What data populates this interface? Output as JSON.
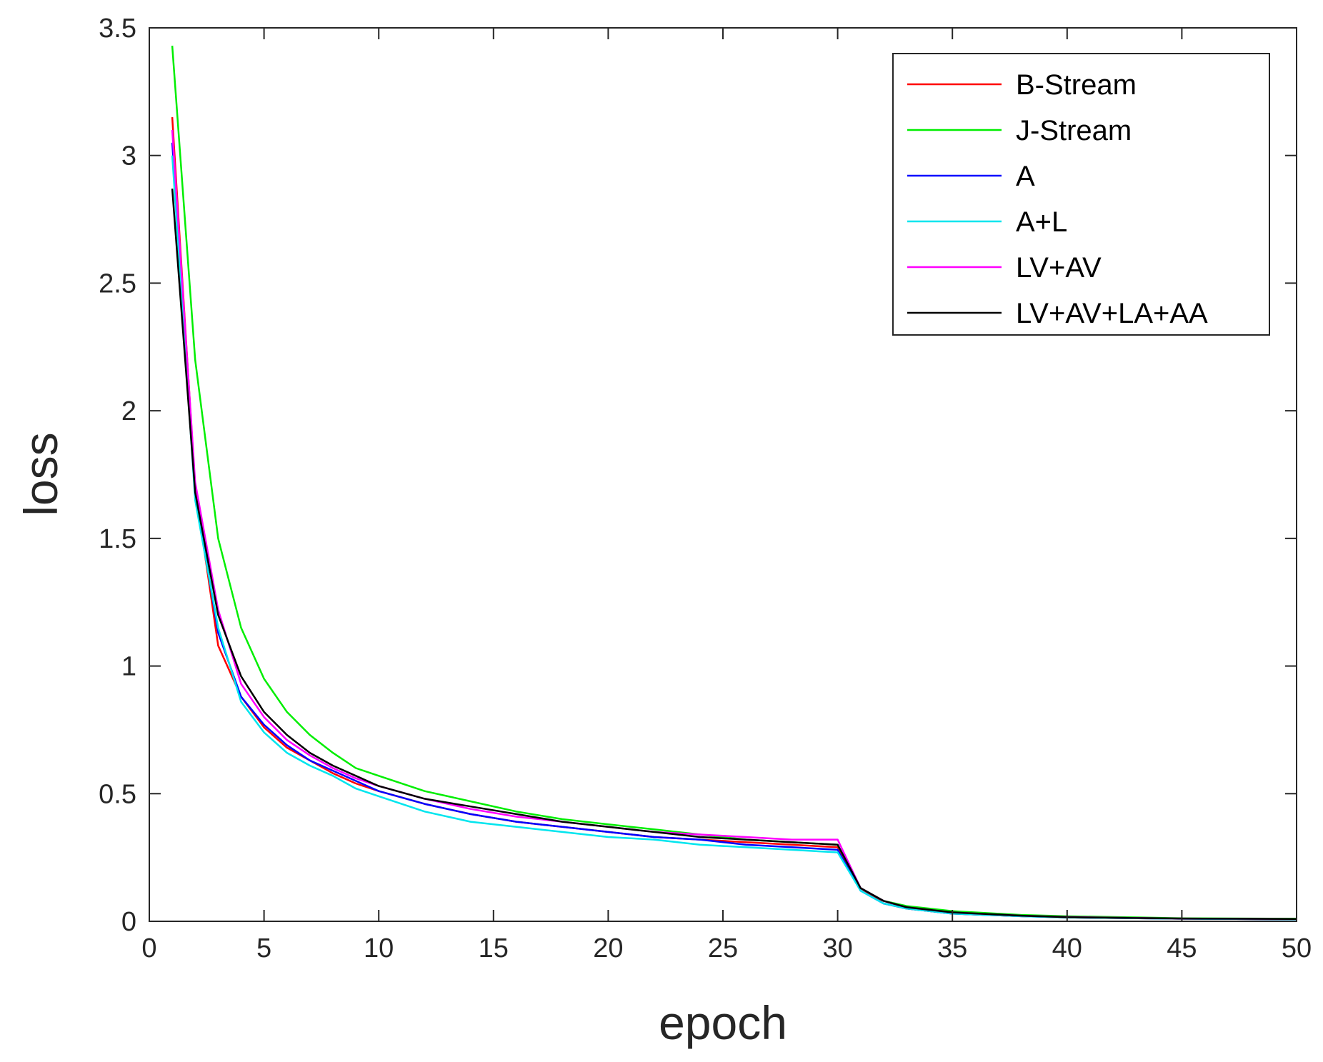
{
  "chart_data": {
    "type": "line",
    "xlabel": "epoch",
    "ylabel": "loss",
    "xlim": [
      0,
      50
    ],
    "ylim": [
      0,
      3.5
    ],
    "xticks": [
      0,
      5,
      10,
      15,
      20,
      25,
      30,
      35,
      40,
      45,
      50
    ],
    "yticks": [
      0,
      0.5,
      1,
      1.5,
      2,
      2.5,
      3,
      3.5
    ],
    "xtick_labels": [
      "0",
      "5",
      "10",
      "15",
      "20",
      "25",
      "30",
      "35",
      "40",
      "45",
      "50"
    ],
    "ytick_labels": [
      "0",
      "0.5",
      "1",
      "1.5",
      "2",
      "2.5",
      "3",
      "3.5"
    ],
    "grid": false,
    "legend_position": "top-right",
    "series": [
      {
        "name": "B-Stream",
        "color": "#ff0000",
        "points": [
          [
            1,
            3.15
          ],
          [
            2,
            1.7
          ],
          [
            3,
            1.08
          ],
          [
            4,
            0.88
          ],
          [
            5,
            0.76
          ],
          [
            6,
            0.68
          ],
          [
            7,
            0.63
          ],
          [
            8,
            0.58
          ],
          [
            9,
            0.54
          ],
          [
            10,
            0.51
          ],
          [
            12,
            0.46
          ],
          [
            14,
            0.42
          ],
          [
            16,
            0.39
          ],
          [
            18,
            0.37
          ],
          [
            20,
            0.35
          ],
          [
            22,
            0.33
          ],
          [
            24,
            0.32
          ],
          [
            26,
            0.31
          ],
          [
            28,
            0.3
          ],
          [
            30,
            0.29
          ],
          [
            31,
            0.13
          ],
          [
            32,
            0.07
          ],
          [
            33,
            0.05
          ],
          [
            35,
            0.03
          ],
          [
            38,
            0.02
          ],
          [
            40,
            0.015
          ],
          [
            45,
            0.01
          ],
          [
            50,
            0.008
          ]
        ]
      },
      {
        "name": "J-Stream",
        "color": "#00ee00",
        "points": [
          [
            1,
            3.43
          ],
          [
            2,
            2.2
          ],
          [
            3,
            1.5
          ],
          [
            4,
            1.15
          ],
          [
            5,
            0.95
          ],
          [
            6,
            0.82
          ],
          [
            7,
            0.73
          ],
          [
            8,
            0.66
          ],
          [
            9,
            0.6
          ],
          [
            10,
            0.57
          ],
          [
            12,
            0.51
          ],
          [
            14,
            0.47
          ],
          [
            16,
            0.43
          ],
          [
            18,
            0.4
          ],
          [
            20,
            0.38
          ],
          [
            22,
            0.36
          ],
          [
            24,
            0.34
          ],
          [
            26,
            0.32
          ],
          [
            28,
            0.31
          ],
          [
            30,
            0.3
          ],
          [
            31,
            0.13
          ],
          [
            32,
            0.08
          ],
          [
            33,
            0.06
          ],
          [
            35,
            0.04
          ],
          [
            38,
            0.025
          ],
          [
            40,
            0.02
          ],
          [
            45,
            0.012
          ],
          [
            50,
            0.01
          ]
        ]
      },
      {
        "name": "A",
        "color": "#0000ff",
        "points": [
          [
            1,
            3.05
          ],
          [
            2,
            1.68
          ],
          [
            3,
            1.13
          ],
          [
            4,
            0.88
          ],
          [
            5,
            0.77
          ],
          [
            6,
            0.69
          ],
          [
            7,
            0.63
          ],
          [
            8,
            0.59
          ],
          [
            9,
            0.55
          ],
          [
            10,
            0.51
          ],
          [
            12,
            0.46
          ],
          [
            14,
            0.42
          ],
          [
            16,
            0.39
          ],
          [
            18,
            0.37
          ],
          [
            20,
            0.35
          ],
          [
            22,
            0.33
          ],
          [
            24,
            0.32
          ],
          [
            26,
            0.3
          ],
          [
            28,
            0.29
          ],
          [
            30,
            0.28
          ],
          [
            31,
            0.12
          ],
          [
            32,
            0.07
          ],
          [
            33,
            0.05
          ],
          [
            35,
            0.03
          ],
          [
            38,
            0.02
          ],
          [
            40,
            0.015
          ],
          [
            45,
            0.01
          ],
          [
            50,
            0.008
          ]
        ]
      },
      {
        "name": "A+L",
        "color": "#00e5ee",
        "points": [
          [
            1,
            3.0
          ],
          [
            2,
            1.65
          ],
          [
            3,
            1.15
          ],
          [
            4,
            0.86
          ],
          [
            5,
            0.74
          ],
          [
            6,
            0.66
          ],
          [
            7,
            0.61
          ],
          [
            8,
            0.57
          ],
          [
            9,
            0.52
          ],
          [
            10,
            0.49
          ],
          [
            12,
            0.43
          ],
          [
            14,
            0.39
          ],
          [
            16,
            0.37
          ],
          [
            18,
            0.35
          ],
          [
            20,
            0.33
          ],
          [
            22,
            0.32
          ],
          [
            24,
            0.3
          ],
          [
            26,
            0.29
          ],
          [
            28,
            0.28
          ],
          [
            30,
            0.27
          ],
          [
            31,
            0.12
          ],
          [
            32,
            0.07
          ],
          [
            33,
            0.05
          ],
          [
            35,
            0.03
          ],
          [
            38,
            0.02
          ],
          [
            40,
            0.015
          ],
          [
            45,
            0.01
          ],
          [
            50,
            0.008
          ]
        ]
      },
      {
        "name": "LV+AV",
        "color": "#ff00ff",
        "points": [
          [
            1,
            3.1
          ],
          [
            2,
            1.72
          ],
          [
            3,
            1.22
          ],
          [
            4,
            0.93
          ],
          [
            5,
            0.8
          ],
          [
            6,
            0.71
          ],
          [
            7,
            0.65
          ],
          [
            8,
            0.6
          ],
          [
            9,
            0.56
          ],
          [
            10,
            0.53
          ],
          [
            12,
            0.48
          ],
          [
            14,
            0.44
          ],
          [
            16,
            0.41
          ],
          [
            18,
            0.39
          ],
          [
            20,
            0.37
          ],
          [
            22,
            0.35
          ],
          [
            24,
            0.34
          ],
          [
            26,
            0.33
          ],
          [
            28,
            0.32
          ],
          [
            30,
            0.32
          ],
          [
            31,
            0.13
          ],
          [
            32,
            0.08
          ],
          [
            33,
            0.055
          ],
          [
            35,
            0.035
          ],
          [
            38,
            0.022
          ],
          [
            40,
            0.017
          ],
          [
            45,
            0.011
          ],
          [
            50,
            0.009
          ]
        ]
      },
      {
        "name": "LV+AV+LA+AA",
        "color": "#000000",
        "points": [
          [
            1,
            2.87
          ],
          [
            2,
            1.68
          ],
          [
            3,
            1.2
          ],
          [
            4,
            0.96
          ],
          [
            5,
            0.82
          ],
          [
            6,
            0.73
          ],
          [
            7,
            0.66
          ],
          [
            8,
            0.61
          ],
          [
            9,
            0.57
          ],
          [
            10,
            0.53
          ],
          [
            12,
            0.48
          ],
          [
            14,
            0.45
          ],
          [
            16,
            0.42
          ],
          [
            18,
            0.39
          ],
          [
            20,
            0.37
          ],
          [
            22,
            0.35
          ],
          [
            24,
            0.33
          ],
          [
            26,
            0.32
          ],
          [
            28,
            0.31
          ],
          [
            30,
            0.3
          ],
          [
            31,
            0.13
          ],
          [
            32,
            0.08
          ],
          [
            33,
            0.055
          ],
          [
            35,
            0.035
          ],
          [
            38,
            0.022
          ],
          [
            40,
            0.016
          ],
          [
            45,
            0.011
          ],
          [
            50,
            0.009
          ]
        ]
      }
    ]
  }
}
